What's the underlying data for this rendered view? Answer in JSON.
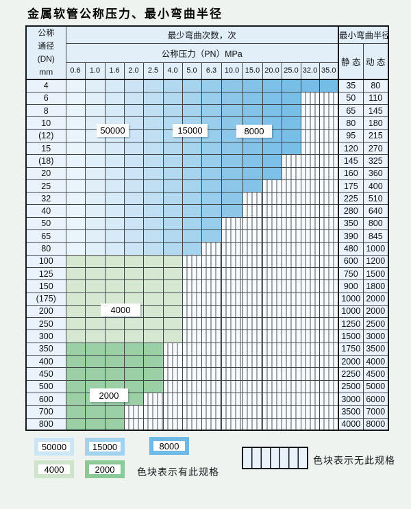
{
  "title": "金属软管公称压力、最小弯曲半径",
  "table": {
    "header": {
      "dn_lines": [
        "公称",
        "通径",
        "(DN)",
        "mm"
      ],
      "cycles_title": "最少弯曲次数，次",
      "pressure_title": "公称压力（PN）MPa",
      "radius_title": "最小弯曲半径",
      "static_label": "静 态",
      "dynamic_label": "动 态",
      "pressure_ticks": [
        "0.6",
        "1.0",
        "1.6",
        "2.0",
        "2.5",
        "4.0",
        "5.0",
        "6.3",
        "10.0",
        "15.0",
        "20.0",
        "25.0",
        "32.0",
        "35.0"
      ]
    },
    "rows": [
      {
        "dn": "4",
        "colored": 14,
        "palette": "blue",
        "static": "35",
        "dynamic": "80"
      },
      {
        "dn": "6",
        "colored": 12,
        "palette": "blue",
        "static": "50",
        "dynamic": "110"
      },
      {
        "dn": "8",
        "colored": 12,
        "palette": "blue",
        "static": "65",
        "dynamic": "145"
      },
      {
        "dn": "10",
        "colored": 12,
        "palette": "blue",
        "static": "80",
        "dynamic": "180"
      },
      {
        "dn": "(12)",
        "colored": 12,
        "palette": "blue",
        "static": "95",
        "dynamic": "215"
      },
      {
        "dn": "15",
        "colored": 12,
        "palette": "blue",
        "static": "120",
        "dynamic": "270"
      },
      {
        "dn": "(18)",
        "colored": 11,
        "palette": "blue",
        "static": "145",
        "dynamic": "325"
      },
      {
        "dn": "20",
        "colored": 11,
        "palette": "blue",
        "static": "160",
        "dynamic": "360"
      },
      {
        "dn": "25",
        "colored": 10,
        "palette": "blue",
        "static": "175",
        "dynamic": "400"
      },
      {
        "dn": "32",
        "colored": 9,
        "palette": "blue",
        "static": "225",
        "dynamic": "510"
      },
      {
        "dn": "40",
        "colored": 9,
        "palette": "blue",
        "static": "280",
        "dynamic": "640"
      },
      {
        "dn": "50",
        "colored": 8,
        "palette": "blue",
        "static": "350",
        "dynamic": "800"
      },
      {
        "dn": "65",
        "colored": 8,
        "palette": "blue",
        "static": "390",
        "dynamic": "845"
      },
      {
        "dn": "80",
        "colored": 7,
        "palette": "blue",
        "static": "480",
        "dynamic": "1000"
      },
      {
        "dn": "100",
        "colored": 6,
        "palette": "green-4000",
        "static": "600",
        "dynamic": "1200"
      },
      {
        "dn": "125",
        "colored": 6,
        "palette": "green-4000",
        "static": "750",
        "dynamic": "1500"
      },
      {
        "dn": "150",
        "colored": 6,
        "palette": "green-4000",
        "static": "900",
        "dynamic": "1800"
      },
      {
        "dn": "(175)",
        "colored": 6,
        "palette": "green-4000",
        "static": "1000",
        "dynamic": "2000"
      },
      {
        "dn": "200",
        "colored": 6,
        "palette": "green-4000",
        "static": "1000",
        "dynamic": "2000"
      },
      {
        "dn": "250",
        "colored": 6,
        "palette": "green-4000",
        "static": "1250",
        "dynamic": "2500"
      },
      {
        "dn": "300",
        "colored": 6,
        "palette": "green-4000",
        "static": "1500",
        "dynamic": "3000"
      },
      {
        "dn": "350",
        "colored": 5,
        "palette": "green-2000",
        "static": "1750",
        "dynamic": "3500"
      },
      {
        "dn": "400",
        "colored": 5,
        "palette": "green-2000",
        "static": "2000",
        "dynamic": "4000"
      },
      {
        "dn": "450",
        "colored": 5,
        "palette": "green-2000",
        "static": "2250",
        "dynamic": "4500"
      },
      {
        "dn": "500",
        "colored": 5,
        "palette": "green-2000",
        "static": "2500",
        "dynamic": "5000"
      },
      {
        "dn": "600",
        "colored": 4,
        "palette": "green-2000",
        "static": "3000",
        "dynamic": "6000"
      },
      {
        "dn": "700",
        "colored": 3,
        "palette": "green-2000",
        "static": "3500",
        "dynamic": "7000"
      },
      {
        "dn": "800",
        "colored": 3,
        "palette": "green-2000",
        "static": "4000",
        "dynamic": "8000"
      }
    ]
  },
  "legend": {
    "items": [
      {
        "value": "50000",
        "color": "#cde6f6"
      },
      {
        "value": "15000",
        "color": "#a3d2ef"
      },
      {
        "value": "8000",
        "color": "#6fb9e5"
      },
      {
        "value": "4000",
        "color": "#cfe4cb"
      },
      {
        "value": "2000",
        "color": "#8bc998"
      }
    ],
    "has_spec_note": "色块表示有此规格",
    "no_spec_note": "色块表示无此规格"
  },
  "colors": {
    "page_bg": "#eff3f0",
    "blue_columns": [
      "#eaf4fc",
      "#e1eff9",
      "#d7eaf7",
      "#cce4f5",
      "#c1dff3",
      "#b3d9f0",
      "#a6d3ee",
      "#99cdec",
      "#8cc7ea",
      "#83c3e9",
      "#7dc0e8",
      "#79bee7",
      "#77bde7",
      "#75bce6"
    ],
    "green_4000": "#d7e8d2",
    "green_2000": "#9bd0a6",
    "hatch_bg": "#f7fbfd",
    "hatch_line": "#4a5258",
    "label_cell_bg": "#eaf3fb",
    "header_cell_bg": "#e2eef8",
    "grid_line": "#3f4448",
    "outer_border": "#15181a"
  }
}
